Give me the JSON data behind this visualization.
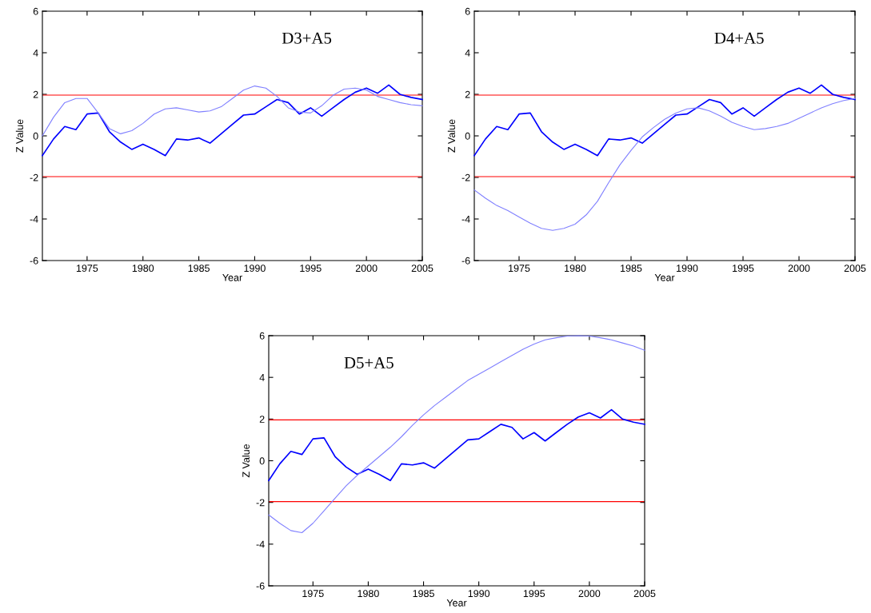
{
  "chart_data": [
    {
      "type": "line",
      "xlabel": "Year",
      "ylabel": "Z Value",
      "annotations": [
        "D3+A5"
      ],
      "x": [
        1971,
        1972,
        1973,
        1974,
        1975,
        1976,
        1977,
        1978,
        1979,
        1980,
        1981,
        1982,
        1983,
        1984,
        1985,
        1986,
        1987,
        1988,
        1989,
        1990,
        1991,
        1992,
        1993,
        1994,
        1995,
        1996,
        1997,
        1998,
        1999,
        2000,
        2001,
        2002,
        2003,
        2004,
        2005
      ],
      "series": [
        {
          "color": "#0000ff",
          "values": [
            -0.95,
            -0.15,
            0.45,
            0.3,
            1.05,
            1.1,
            0.2,
            -0.3,
            -0.65,
            -0.4,
            -0.65,
            -0.95,
            -0.15,
            -0.2,
            -0.1,
            -0.35,
            0.1,
            0.55,
            1.0,
            1.05,
            1.4,
            1.75,
            1.6,
            1.05,
            1.35,
            0.95,
            1.35,
            1.75,
            2.1,
            2.3,
            2.05,
            2.45,
            2.0,
            1.85,
            1.75
          ]
        },
        {
          "color": "#8080ff",
          "values": [
            0.0,
            0.9,
            1.6,
            1.8,
            1.8,
            1.1,
            0.35,
            0.1,
            0.25,
            0.6,
            1.05,
            1.3,
            1.35,
            1.25,
            1.15,
            1.2,
            1.4,
            1.8,
            2.2,
            2.4,
            2.3,
            1.9,
            1.35,
            1.15,
            1.1,
            1.45,
            1.95,
            2.25,
            2.3,
            2.2,
            1.9,
            1.75,
            1.6,
            1.5,
            1.45
          ]
        }
      ],
      "ref_lines": [
        {
          "axis": "y",
          "value": 1.96,
          "color": "#ff0000"
        },
        {
          "axis": "y",
          "value": -1.96,
          "color": "#ff0000"
        }
      ],
      "xlim": [
        1971,
        2005
      ],
      "xticks": [
        1975,
        1980,
        1985,
        1990,
        1995,
        2000,
        2005
      ],
      "ylim": [
        -6,
        6
      ],
      "yticks": [
        -6,
        -4,
        -2,
        0,
        2,
        4,
        6
      ],
      "grid": false,
      "legend": false
    },
    {
      "type": "line",
      "xlabel": "Year",
      "ylabel": "Z Value",
      "annotations": [
        "D4+A5"
      ],
      "x": [
        1971,
        1972,
        1973,
        1974,
        1975,
        1976,
        1977,
        1978,
        1979,
        1980,
        1981,
        1982,
        1983,
        1984,
        1985,
        1986,
        1987,
        1988,
        1989,
        1990,
        1991,
        1992,
        1993,
        1994,
        1995,
        1996,
        1997,
        1998,
        1999,
        2000,
        2001,
        2002,
        2003,
        2004,
        2005
      ],
      "series": [
        {
          "color": "#0000ff",
          "values": [
            -0.95,
            -0.15,
            0.45,
            0.3,
            1.05,
            1.1,
            0.2,
            -0.3,
            -0.65,
            -0.4,
            -0.65,
            -0.95,
            -0.15,
            -0.2,
            -0.1,
            -0.35,
            0.1,
            0.55,
            1.0,
            1.05,
            1.4,
            1.75,
            1.6,
            1.05,
            1.35,
            0.95,
            1.35,
            1.75,
            2.1,
            2.3,
            2.05,
            2.45,
            2.0,
            1.85,
            1.75
          ]
        },
        {
          "color": "#8080ff",
          "values": [
            -2.6,
            -3.0,
            -3.35,
            -3.6,
            -3.9,
            -4.2,
            -4.45,
            -4.55,
            -4.45,
            -4.25,
            -3.8,
            -3.15,
            -2.25,
            -1.4,
            -0.7,
            -0.05,
            0.4,
            0.8,
            1.1,
            1.3,
            1.35,
            1.2,
            0.95,
            0.65,
            0.45,
            0.3,
            0.35,
            0.45,
            0.6,
            0.85,
            1.1,
            1.35,
            1.55,
            1.7,
            1.8
          ]
        }
      ],
      "ref_lines": [
        {
          "axis": "y",
          "value": 1.96,
          "color": "#ff0000"
        },
        {
          "axis": "y",
          "value": -1.96,
          "color": "#ff0000"
        }
      ],
      "xlim": [
        1971,
        2005
      ],
      "xticks": [
        1975,
        1980,
        1985,
        1990,
        1995,
        2000,
        2005
      ],
      "ylim": [
        -6,
        6
      ],
      "yticks": [
        -6,
        -4,
        -2,
        0,
        2,
        4,
        6
      ],
      "grid": false,
      "legend": false
    },
    {
      "type": "line",
      "xlabel": "Year",
      "ylabel": "Z Value",
      "annotations": [
        "D5+A5"
      ],
      "x": [
        1971,
        1972,
        1973,
        1974,
        1975,
        1976,
        1977,
        1978,
        1979,
        1980,
        1981,
        1982,
        1983,
        1984,
        1985,
        1986,
        1987,
        1988,
        1989,
        1990,
        1991,
        1992,
        1993,
        1994,
        1995,
        1996,
        1997,
        1998,
        1999,
        2000,
        2001,
        2002,
        2003,
        2004,
        2005
      ],
      "series": [
        {
          "color": "#0000ff",
          "values": [
            -0.95,
            -0.15,
            0.45,
            0.3,
            1.05,
            1.1,
            0.2,
            -0.3,
            -0.65,
            -0.4,
            -0.65,
            -0.95,
            -0.15,
            -0.2,
            -0.1,
            -0.35,
            0.1,
            0.55,
            1.0,
            1.05,
            1.4,
            1.75,
            1.6,
            1.05,
            1.35,
            0.95,
            1.35,
            1.75,
            2.1,
            2.3,
            2.05,
            2.45,
            2.0,
            1.85,
            1.75
          ]
        },
        {
          "color": "#8080ff",
          "values": [
            -2.6,
            -3.0,
            -3.35,
            -3.45,
            -3.0,
            -2.4,
            -1.8,
            -1.2,
            -0.7,
            -0.25,
            0.2,
            0.65,
            1.15,
            1.7,
            2.2,
            2.65,
            3.05,
            3.45,
            3.85,
            4.15,
            4.45,
            4.75,
            5.05,
            5.35,
            5.6,
            5.8,
            5.9,
            5.98,
            6.0,
            5.98,
            5.9,
            5.8,
            5.65,
            5.5,
            5.3
          ]
        }
      ],
      "ref_lines": [
        {
          "axis": "y",
          "value": 1.96,
          "color": "#ff0000"
        },
        {
          "axis": "y",
          "value": -1.96,
          "color": "#ff0000"
        }
      ],
      "xlim": [
        1971,
        2005
      ],
      "xticks": [
        1975,
        1980,
        1985,
        1990,
        1995,
        2000,
        2005
      ],
      "ylim": [
        -6,
        6
      ],
      "yticks": [
        -6,
        -4,
        -2,
        0,
        2,
        4,
        6
      ],
      "grid": false,
      "legend": false
    }
  ]
}
